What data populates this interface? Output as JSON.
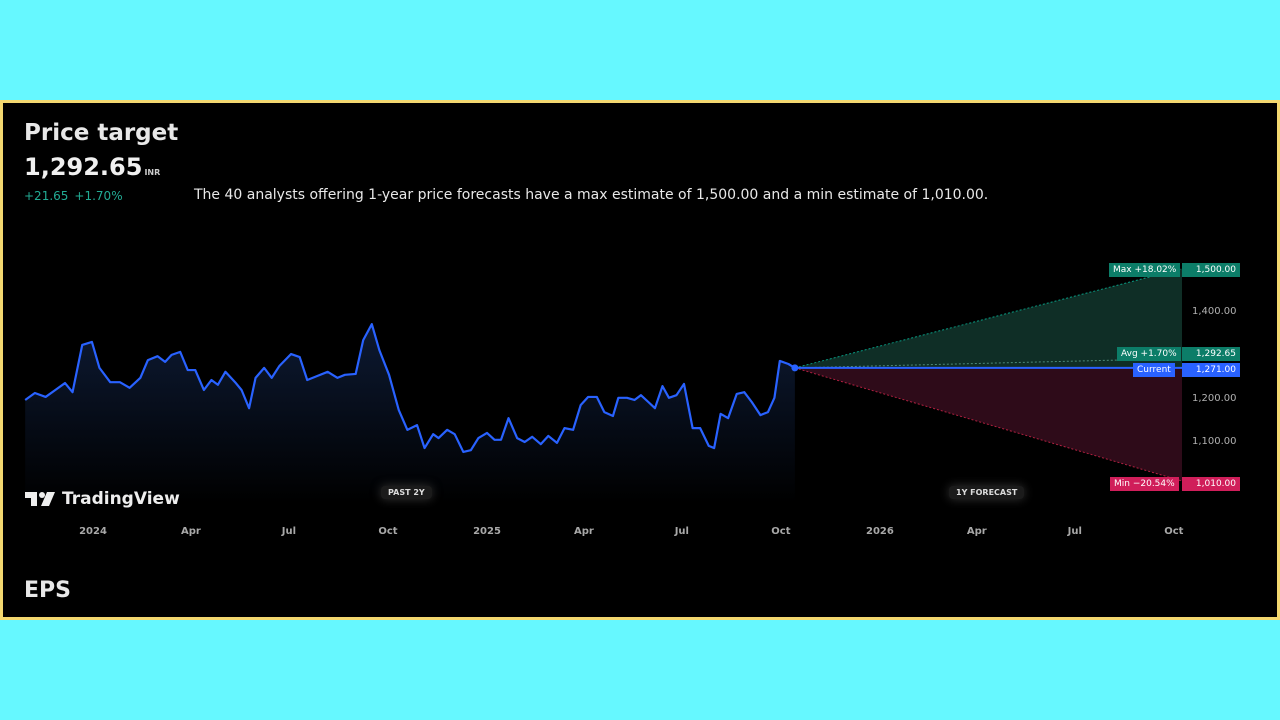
{
  "header": {
    "title": "Price target",
    "price": "1,292.65",
    "currency": "INR",
    "change_abs": "+21.65",
    "change_pct": "+1.70%",
    "description": "The 40 analysts offering 1-year price forecasts have a max estimate of 1,500.00 and a min estimate of 1,010.00."
  },
  "chart_data": {
    "type": "line",
    "price_series": [
      [
        "2023-10-30",
        1197
      ],
      [
        "2023-11-08",
        1213
      ],
      [
        "2023-11-18",
        1204
      ],
      [
        "2023-11-27",
        1220
      ],
      [
        "2023-12-06",
        1236
      ],
      [
        "2023-12-13",
        1215
      ],
      [
        "2023-12-22",
        1324
      ],
      [
        "2023-12-31",
        1331
      ],
      [
        "2024-01-07",
        1271
      ],
      [
        "2024-01-17",
        1238
      ],
      [
        "2024-01-26",
        1238
      ],
      [
        "2024-02-04",
        1225
      ],
      [
        "2024-02-14",
        1248
      ],
      [
        "2024-02-21",
        1289
      ],
      [
        "2024-03-01",
        1298
      ],
      [
        "2024-03-08",
        1285
      ],
      [
        "2024-03-14",
        1301
      ],
      [
        "2024-03-22",
        1308
      ],
      [
        "2024-03-29",
        1266
      ],
      [
        "2024-04-05",
        1266
      ],
      [
        "2024-04-13",
        1220
      ],
      [
        "2024-04-20",
        1243
      ],
      [
        "2024-04-26",
        1232
      ],
      [
        "2024-05-03",
        1262
      ],
      [
        "2024-05-12",
        1238
      ],
      [
        "2024-05-18",
        1220
      ],
      [
        "2024-05-25",
        1178
      ],
      [
        "2024-05-31",
        1248
      ],
      [
        "2024-06-08",
        1271
      ],
      [
        "2024-06-15",
        1248
      ],
      [
        "2024-06-22",
        1275
      ],
      [
        "2024-07-03",
        1303
      ],
      [
        "2024-07-11",
        1296
      ],
      [
        "2024-07-18",
        1243
      ],
      [
        "2024-07-27",
        1252
      ],
      [
        "2024-08-06",
        1262
      ],
      [
        "2024-08-15",
        1248
      ],
      [
        "2024-08-22",
        1255
      ],
      [
        "2024-09-01",
        1257
      ],
      [
        "2024-09-08",
        1335
      ],
      [
        "2024-09-16",
        1372
      ],
      [
        "2024-09-23",
        1312
      ],
      [
        "2024-10-02",
        1255
      ],
      [
        "2024-10-11",
        1174
      ],
      [
        "2024-10-19",
        1128
      ],
      [
        "2024-10-28",
        1139
      ],
      [
        "2024-11-04",
        1086
      ],
      [
        "2024-11-12",
        1118
      ],
      [
        "2024-11-17",
        1109
      ],
      [
        "2024-11-25",
        1128
      ],
      [
        "2024-12-02",
        1118
      ],
      [
        "2024-12-10",
        1077
      ],
      [
        "2024-12-17",
        1081
      ],
      [
        "2024-12-24",
        1109
      ],
      [
        "2025-01-01",
        1121
      ],
      [
        "2025-01-08",
        1105
      ],
      [
        "2025-01-14",
        1105
      ],
      [
        "2025-01-21",
        1155
      ],
      [
        "2025-01-29",
        1109
      ],
      [
        "2025-02-05",
        1100
      ],
      [
        "2025-02-12",
        1112
      ],
      [
        "2025-02-20",
        1095
      ],
      [
        "2025-02-27",
        1114
      ],
      [
        "2025-03-07",
        1098
      ],
      [
        "2025-03-14",
        1132
      ],
      [
        "2025-03-22",
        1128
      ],
      [
        "2025-03-29",
        1185
      ],
      [
        "2025-04-05",
        1204
      ],
      [
        "2025-04-13",
        1204
      ],
      [
        "2025-04-20",
        1169
      ],
      [
        "2025-04-28",
        1160
      ],
      [
        "2025-05-03",
        1202
      ],
      [
        "2025-05-11",
        1202
      ],
      [
        "2025-05-18",
        1197
      ],
      [
        "2025-05-24",
        1208
      ],
      [
        "2025-05-31",
        1192
      ],
      [
        "2025-06-06",
        1178
      ],
      [
        "2025-06-13",
        1229
      ],
      [
        "2025-06-19",
        1202
      ],
      [
        "2025-06-26",
        1208
      ],
      [
        "2025-07-03",
        1234
      ],
      [
        "2025-07-11",
        1132
      ],
      [
        "2025-07-18",
        1132
      ],
      [
        "2025-07-26",
        1091
      ],
      [
        "2025-07-31",
        1086
      ],
      [
        "2025-08-06",
        1165
      ],
      [
        "2025-08-13",
        1155
      ],
      [
        "2025-08-21",
        1211
      ],
      [
        "2025-08-28",
        1215
      ],
      [
        "2025-09-04",
        1192
      ],
      [
        "2025-09-12",
        1162
      ],
      [
        "2025-09-19",
        1169
      ],
      [
        "2025-09-25",
        1202
      ],
      [
        "2025-09-30",
        1287
      ],
      [
        "2025-10-08",
        1280
      ],
      [
        "2025-10-14",
        1271
      ]
    ],
    "forecast": {
      "max": {
        "label": "Max +18.02%",
        "value": "1,500.00",
        "v": 1500
      },
      "avg": {
        "label": "Avg +1.70%",
        "value": "1,292.65",
        "v": 1292.65
      },
      "current": {
        "label": "Current",
        "value": "1,271.00",
        "v": 1271
      },
      "min": {
        "label": "Min −20.54%",
        "value": "1,010.00",
        "v": 1010
      }
    },
    "y_ticks": [
      "1,400.00",
      "1,200.00",
      "1,100.00"
    ],
    "x_ticks": [
      "2024",
      "Apr",
      "Jul",
      "Oct",
      "2025",
      "Apr",
      "Jul",
      "Oct",
      "2026",
      "Apr",
      "Jul",
      "Oct"
    ],
    "x_tick_dates": [
      "2024-01-01",
      "2024-04-01",
      "2024-07-01",
      "2024-10-01",
      "2025-01-01",
      "2025-04-01",
      "2025-07-01",
      "2025-10-01",
      "2026-01-01",
      "2026-04-01",
      "2026-07-01",
      "2026-10-01"
    ],
    "period_labels": {
      "past": "PAST 2Y",
      "forecast": "1Y FORECAST"
    },
    "colors": {
      "line": "#2962ff",
      "max": "#089981",
      "min": "#f23645",
      "current": "#2962ff"
    }
  },
  "branding": {
    "logo": "TradingView"
  },
  "next_section": "EPS"
}
